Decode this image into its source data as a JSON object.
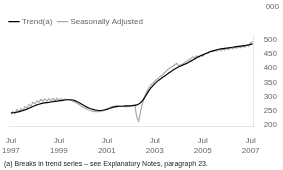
{
  "chart_data": {
    "type": "line",
    "ylabel": "000",
    "annotations": [
      "(a) Breaks in trend series – see Explanatory Notes, paragraph 23."
    ],
    "categories": [
      "Jul\n1997",
      null,
      null,
      null,
      null,
      null,
      null,
      null,
      null,
      null,
      null,
      null,
      null,
      null,
      null,
      null,
      null,
      null,
      null,
      null,
      null,
      null,
      null,
      null,
      "Jul\n1999",
      null,
      null,
      null,
      null,
      null,
      null,
      null,
      null,
      null,
      null,
      null,
      null,
      null,
      null,
      null,
      null,
      null,
      null,
      null,
      null,
      null,
      null,
      null,
      "Jul\n2001",
      null,
      null,
      null,
      null,
      null,
      null,
      null,
      null,
      null,
      null,
      null,
      null,
      null,
      null,
      null,
      null,
      null,
      null,
      null,
      null,
      null,
      null,
      null,
      "Jul\n2003",
      null,
      null,
      null,
      null,
      null,
      null,
      null,
      null,
      null,
      null,
      null,
      null,
      null,
      null,
      null,
      null,
      null,
      null,
      null,
      null,
      null,
      null,
      null,
      "Jul\n2005",
      null,
      null,
      null,
      null,
      null,
      null,
      null,
      null,
      null,
      null,
      null,
      null,
      null,
      null,
      null,
      null,
      null,
      null,
      null,
      null,
      null,
      null,
      null,
      "Jul\n2007",
      null
    ],
    "series": [
      {
        "name": "Trend(a)",
        "color": "#000000",
        "values": [
          242,
          243,
          244,
          245,
          247,
          249,
          251,
          253,
          256,
          259,
          262,
          265,
          268,
          271,
          273,
          275,
          277,
          278,
          279,
          280,
          281,
          282,
          283,
          284,
          285,
          286,
          287,
          288,
          289,
          289,
          289,
          288,
          286,
          283,
          279,
          275,
          271,
          267,
          263,
          260,
          257,
          255,
          253,
          252,
          251,
          251,
          252,
          253,
          255,
          257,
          260,
          262,
          264,
          265,
          266,
          266,
          266,
          267,
          267,
          267,
          267,
          268,
          269,
          271,
          274,
          279,
          287,
          297,
          309,
          320,
          330,
          338,
          346,
          352,
          358,
          363,
          368,
          373,
          378,
          383,
          388,
          393,
          397,
          401,
          405,
          408,
          411,
          414,
          417,
          421,
          425,
          429,
          433,
          437,
          441,
          444,
          447,
          450,
          453,
          456,
          459,
          461,
          463,
          465,
          467,
          468,
          469,
          470,
          471,
          472,
          473,
          474,
          475,
          476,
          477,
          478,
          479,
          480,
          481,
          482,
          484,
          486
        ]
      },
      {
        "name": "Seasonally Adjusted",
        "color": "#aaaaaa",
        "values": [
          238,
          247,
          240,
          254,
          246,
          257,
          250,
          265,
          260,
          272,
          267,
          280,
          274,
          284,
          280,
          290,
          284,
          292,
          284,
          293,
          286,
          294,
          287,
          294,
          288,
          293,
          289,
          291,
          289,
          288,
          287,
          284,
          281,
          277,
          272,
          267,
          263,
          259,
          256,
          253,
          250,
          248,
          247,
          247,
          247,
          248,
          250,
          253,
          257,
          260,
          263,
          266,
          267,
          268,
          267,
          266,
          266,
          265,
          265,
          265,
          267,
          269,
          271,
          228,
          213,
          252,
          280,
          302,
          318,
          330,
          340,
          347,
          354,
          360,
          367,
          372,
          378,
          385,
          392,
          398,
          403,
          407,
          412,
          417,
          408,
          413,
          415,
          420,
          424,
          430,
          434,
          440,
          436,
          444,
          438,
          446,
          442,
          450,
          453,
          456,
          460,
          458,
          463,
          460,
          466,
          462,
          468,
          464,
          470,
          466,
          472,
          468,
          474,
          470,
          476,
          472,
          478,
          474,
          482,
          478,
          490,
          494
        ]
      }
    ],
    "ylim": [
      195,
      515
    ],
    "yticks": [
      200,
      250,
      300,
      350,
      400,
      450,
      500
    ],
    "grid": false,
    "legend": "upper left"
  }
}
